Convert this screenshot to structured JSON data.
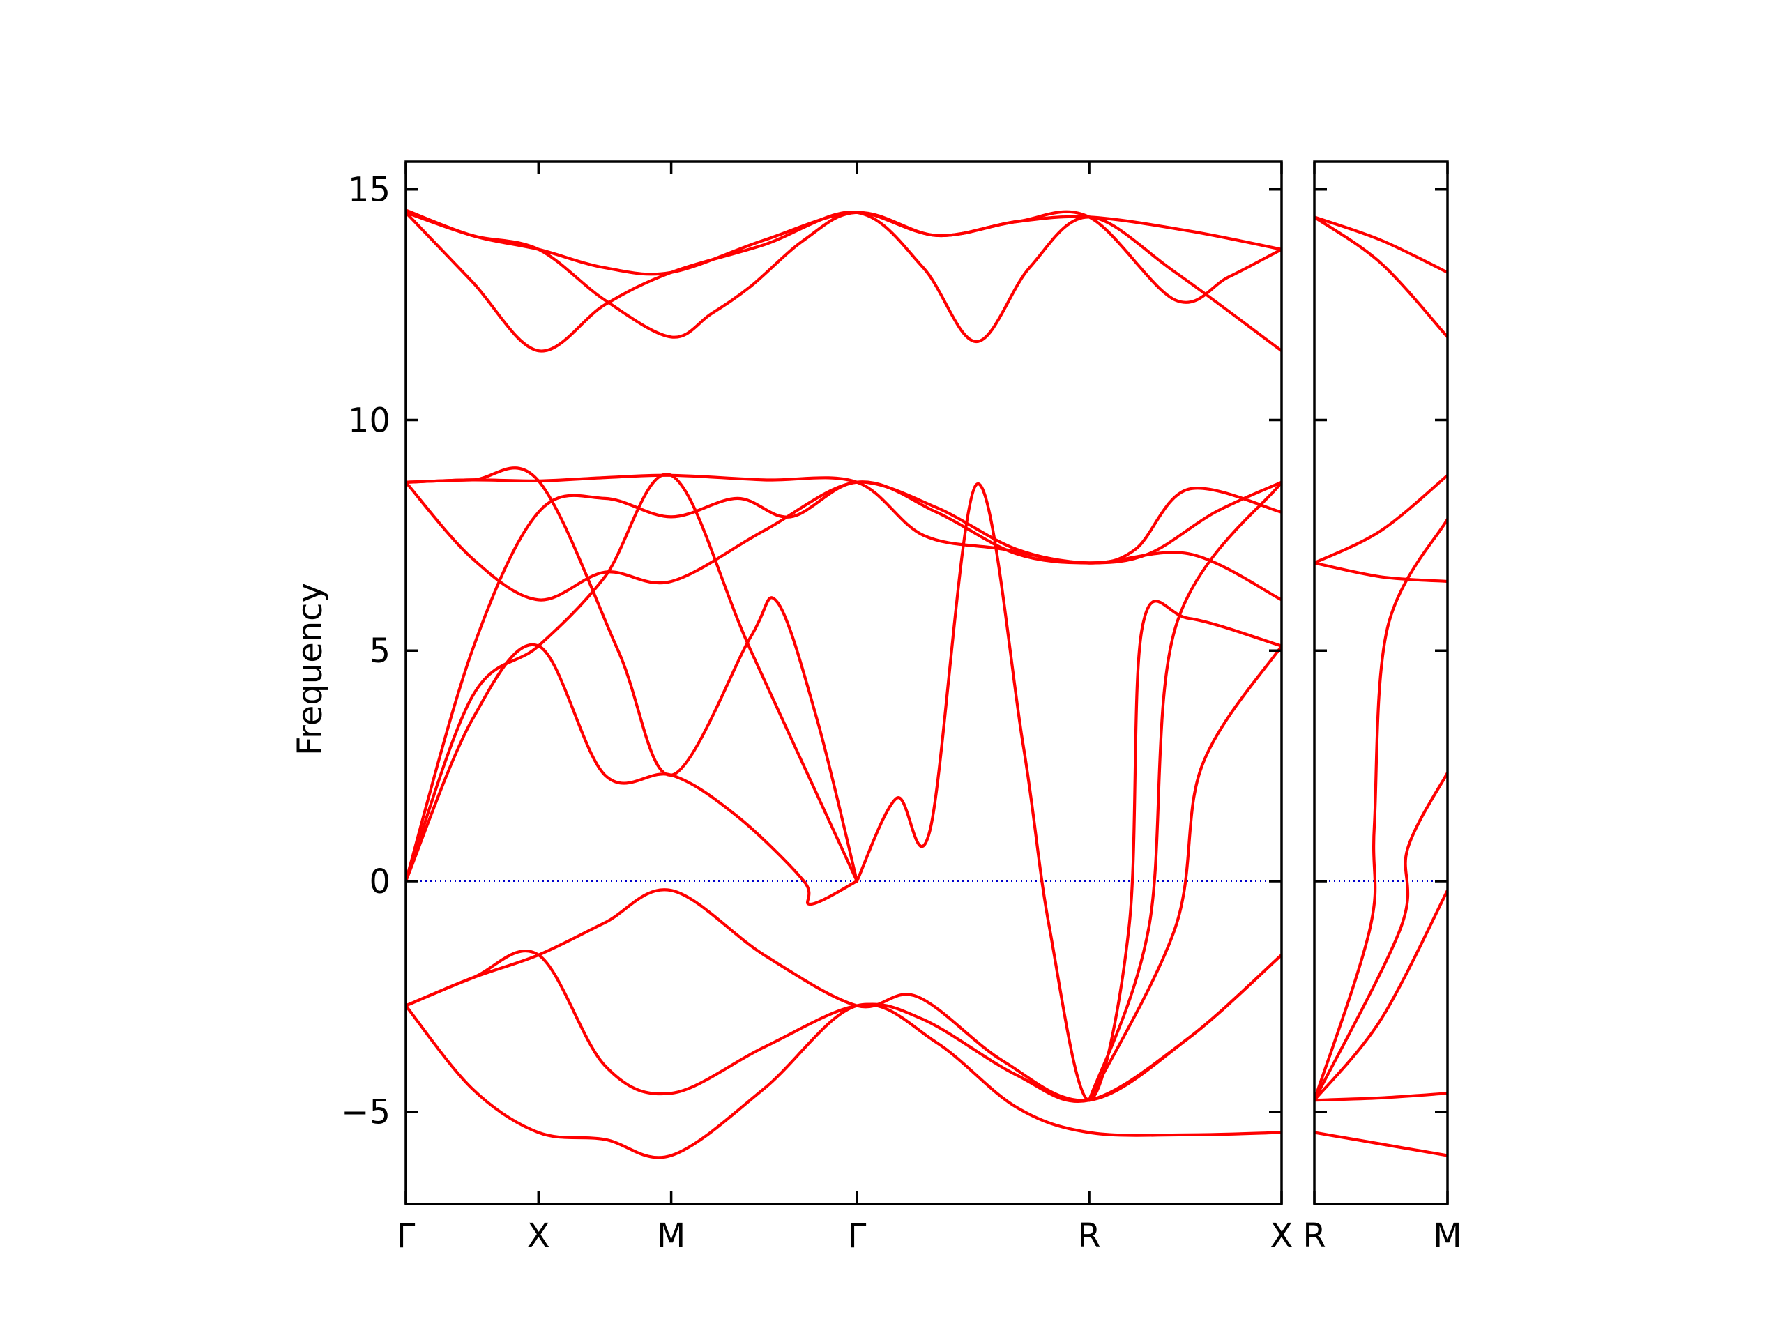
{
  "chart_data": {
    "type": "line",
    "ylabel": "Frequency",
    "ylim": [
      -7,
      15.6
    ],
    "y_ticks": [
      {
        "value": 15,
        "label": "15"
      },
      {
        "value": 10,
        "label": "10"
      },
      {
        "value": 5,
        "label": "5"
      },
      {
        "value": 0,
        "label": "0"
      },
      {
        "value": -5,
        "label": "−5"
      }
    ],
    "line_color": "#ff0000",
    "zero_line_color": "#0000cc",
    "grid": false,
    "panels": [
      {
        "xlim": [
          0,
          6.6
        ],
        "x_ticks": [
          {
            "value": 0,
            "label": "Γ"
          },
          {
            "value": 1.0,
            "label": "X"
          },
          {
            "value": 2.0,
            "label": "M"
          },
          {
            "value": 3.4,
            "label": "Γ"
          },
          {
            "value": 5.15,
            "label": "R"
          },
          {
            "value": 6.6,
            "label": "X"
          }
        ],
        "bands": [
          [
            [
              0,
              14.55
            ],
            [
              0.5,
              14.0
            ],
            [
              1.0,
              13.7
            ],
            [
              1.5,
              13.3
            ],
            [
              2.0,
              13.2
            ],
            [
              2.7,
              13.9
            ],
            [
              3.4,
              14.5
            ],
            [
              4.0,
              14.0
            ],
            [
              4.6,
              14.3
            ],
            [
              5.15,
              14.4
            ],
            [
              5.9,
              14.1
            ],
            [
              6.6,
              13.7
            ]
          ],
          [
            [
              0,
              14.5
            ],
            [
              0.5,
              13.0
            ],
            [
              1.0,
              11.5
            ],
            [
              1.5,
              12.5
            ],
            [
              2.0,
              13.2
            ],
            [
              2.7,
              13.8
            ],
            [
              3.4,
              14.5
            ],
            [
              3.9,
              13.3
            ],
            [
              4.3,
              11.7
            ],
            [
              4.7,
              13.3
            ],
            [
              5.15,
              14.4
            ],
            [
              5.8,
              13.2
            ],
            [
              6.6,
              11.5
            ]
          ],
          [
            [
              0,
              14.5
            ],
            [
              0.5,
              14.0
            ],
            [
              1.0,
              13.7
            ],
            [
              1.5,
              12.6
            ],
            [
              2.0,
              11.8
            ],
            [
              2.3,
              12.3
            ],
            [
              2.6,
              12.9
            ],
            [
              3.0,
              13.9
            ],
            [
              3.4,
              14.5
            ],
            [
              4.0,
              14.0
            ],
            [
              4.6,
              14.3
            ],
            [
              5.15,
              14.4
            ],
            [
              5.8,
              12.6
            ],
            [
              6.2,
              13.1
            ],
            [
              6.6,
              13.7
            ]
          ],
          [
            [
              0,
              8.65
            ],
            [
              0.5,
              8.7
            ],
            [
              1.0,
              8.68
            ],
            [
              1.5,
              8.75
            ],
            [
              2.0,
              8.8
            ],
            [
              2.7,
              8.7
            ],
            [
              3.4,
              8.65
            ],
            [
              3.9,
              7.5
            ],
            [
              4.5,
              7.2
            ],
            [
              5.15,
              6.9
            ],
            [
              5.9,
              7.1
            ],
            [
              6.6,
              6.1
            ]
          ],
          [
            [
              0,
              8.65
            ],
            [
              0.5,
              7.0
            ],
            [
              1.0,
              6.1
            ],
            [
              1.5,
              6.7
            ],
            [
              2.0,
              6.5
            ],
            [
              2.7,
              7.6
            ],
            [
              3.4,
              8.65
            ],
            [
              4.0,
              8.0
            ],
            [
              4.6,
              7.1
            ],
            [
              5.15,
              6.9
            ],
            [
              5.6,
              7.1
            ],
            [
              6.1,
              8.0
            ],
            [
              6.6,
              8.65
            ]
          ],
          [
            [
              0,
              8.65
            ],
            [
              0.5,
              8.7
            ],
            [
              1.0,
              8.68
            ],
            [
              1.6,
              5.0
            ],
            [
              2.0,
              2.3
            ],
            [
              2.6,
              5.3
            ],
            [
              2.8,
              6.05
            ],
            [
              3.1,
              3.5
            ],
            [
              3.4,
              0
            ]
          ],
          [
            [
              0,
              0
            ],
            [
              0.5,
              5.0
            ],
            [
              1.0,
              8.0
            ],
            [
              1.5,
              8.3
            ],
            [
              2.0,
              7.9
            ],
            [
              2.5,
              8.3
            ],
            [
              2.9,
              7.9
            ],
            [
              3.4,
              8.65
            ],
            [
              4.0,
              8.1
            ],
            [
              4.6,
              7.2
            ],
            [
              5.15,
              6.9
            ],
            [
              5.5,
              7.2
            ],
            [
              5.9,
              8.5
            ],
            [
              6.6,
              8.0
            ]
          ],
          [
            [
              0,
              0
            ],
            [
              0.5,
              4.0
            ],
            [
              1.0,
              5.1
            ],
            [
              1.5,
              6.6
            ],
            [
              2.0,
              8.8
            ],
            [
              2.6,
              5.0
            ],
            [
              3.4,
              0
            ]
          ],
          [
            [
              0,
              0
            ],
            [
              0.5,
              3.5
            ],
            [
              1.0,
              5.1
            ],
            [
              1.5,
              2.3
            ],
            [
              2.0,
              2.3
            ],
            [
              2.5,
              1.4
            ],
            [
              3.0,
              0.0
            ],
            [
              3.05,
              -0.5
            ],
            [
              3.4,
              0
            ]
          ],
          [
            [
              3.4,
              0
            ],
            [
              3.7,
              1.8
            ],
            [
              3.95,
              1.1
            ],
            [
              4.3,
              8.6
            ],
            [
              4.65,
              3.0
            ],
            [
              4.85,
              -1.0
            ],
            [
              5.15,
              -4.75
            ],
            [
              5.45,
              -1.0
            ],
            [
              5.55,
              5.5
            ],
            [
              5.9,
              5.7
            ],
            [
              6.6,
              5.1
            ]
          ],
          [
            [
              5.15,
              -4.75
            ],
            [
              5.6,
              -1.0
            ],
            [
              5.8,
              5.5
            ],
            [
              6.6,
              8.65
            ]
          ],
          [
            [
              5.15,
              -4.75
            ],
            [
              5.8,
              -1.0
            ],
            [
              6.0,
              2.5
            ],
            [
              6.6,
              5.1
            ]
          ],
          [
            [
              0,
              -2.7
            ],
            [
              0.5,
              -2.1
            ],
            [
              1.0,
              -1.6
            ],
            [
              1.5,
              -0.9
            ],
            [
              2.0,
              -0.2
            ],
            [
              2.7,
              -1.6
            ],
            [
              3.4,
              -2.7
            ],
            [
              3.85,
              -2.5
            ],
            [
              4.5,
              -3.9
            ],
            [
              5.15,
              -4.75
            ],
            [
              5.9,
              -3.4
            ],
            [
              6.6,
              -1.6
            ]
          ],
          [
            [
              0,
              -2.7
            ],
            [
              0.5,
              -2.1
            ],
            [
              1.0,
              -1.6
            ],
            [
              1.5,
              -4.0
            ],
            [
              2.0,
              -4.6
            ],
            [
              2.7,
              -3.6
            ],
            [
              3.4,
              -2.7
            ],
            [
              3.9,
              -3.0
            ],
            [
              4.6,
              -4.2
            ],
            [
              5.15,
              -4.75
            ],
            [
              5.9,
              -3.4
            ],
            [
              6.6,
              -1.6
            ]
          ],
          [
            [
              0,
              -2.7
            ],
            [
              0.5,
              -4.5
            ],
            [
              1.0,
              -5.45
            ],
            [
              1.5,
              -5.6
            ],
            [
              2.0,
              -5.95
            ],
            [
              2.7,
              -4.5
            ],
            [
              3.4,
              -2.7
            ],
            [
              4.0,
              -3.5
            ],
            [
              4.6,
              -4.9
            ],
            [
              5.15,
              -5.45
            ],
            [
              5.9,
              -5.5
            ],
            [
              6.6,
              -5.45
            ]
          ]
        ]
      },
      {
        "xlim": [
          0,
          1
        ],
        "x_ticks": [
          {
            "value": 0,
            "label": "R"
          },
          {
            "value": 1,
            "label": "M"
          }
        ],
        "bands": [
          [
            [
              0,
              14.4
            ],
            [
              0.5,
              13.9
            ],
            [
              1,
              13.2
            ]
          ],
          [
            [
              0,
              14.4
            ],
            [
              0.5,
              13.4
            ],
            [
              1,
              11.8
            ]
          ],
          [
            [
              0,
              6.9
            ],
            [
              0.5,
              6.6
            ],
            [
              1,
              6.5
            ]
          ],
          [
            [
              0,
              6.9
            ],
            [
              0.5,
              7.6
            ],
            [
              1,
              8.8
            ]
          ],
          [
            [
              0,
              -4.75
            ],
            [
              0.42,
              -1.0
            ],
            [
              0.45,
              1.2
            ],
            [
              0.55,
              5.5
            ],
            [
              1,
              7.85
            ]
          ],
          [
            [
              0,
              -4.75
            ],
            [
              0.65,
              -1.0
            ],
            [
              0.7,
              0.7
            ],
            [
              1,
              2.35
            ]
          ],
          [
            [
              0,
              -4.75
            ],
            [
              0.5,
              -3.0
            ],
            [
              1,
              -0.2
            ]
          ],
          [
            [
              0,
              -4.75
            ],
            [
              0.5,
              -4.7
            ],
            [
              1,
              -4.6
            ]
          ],
          [
            [
              0,
              -5.45
            ],
            [
              0.5,
              -5.7
            ],
            [
              1,
              -5.95
            ]
          ]
        ]
      }
    ]
  }
}
